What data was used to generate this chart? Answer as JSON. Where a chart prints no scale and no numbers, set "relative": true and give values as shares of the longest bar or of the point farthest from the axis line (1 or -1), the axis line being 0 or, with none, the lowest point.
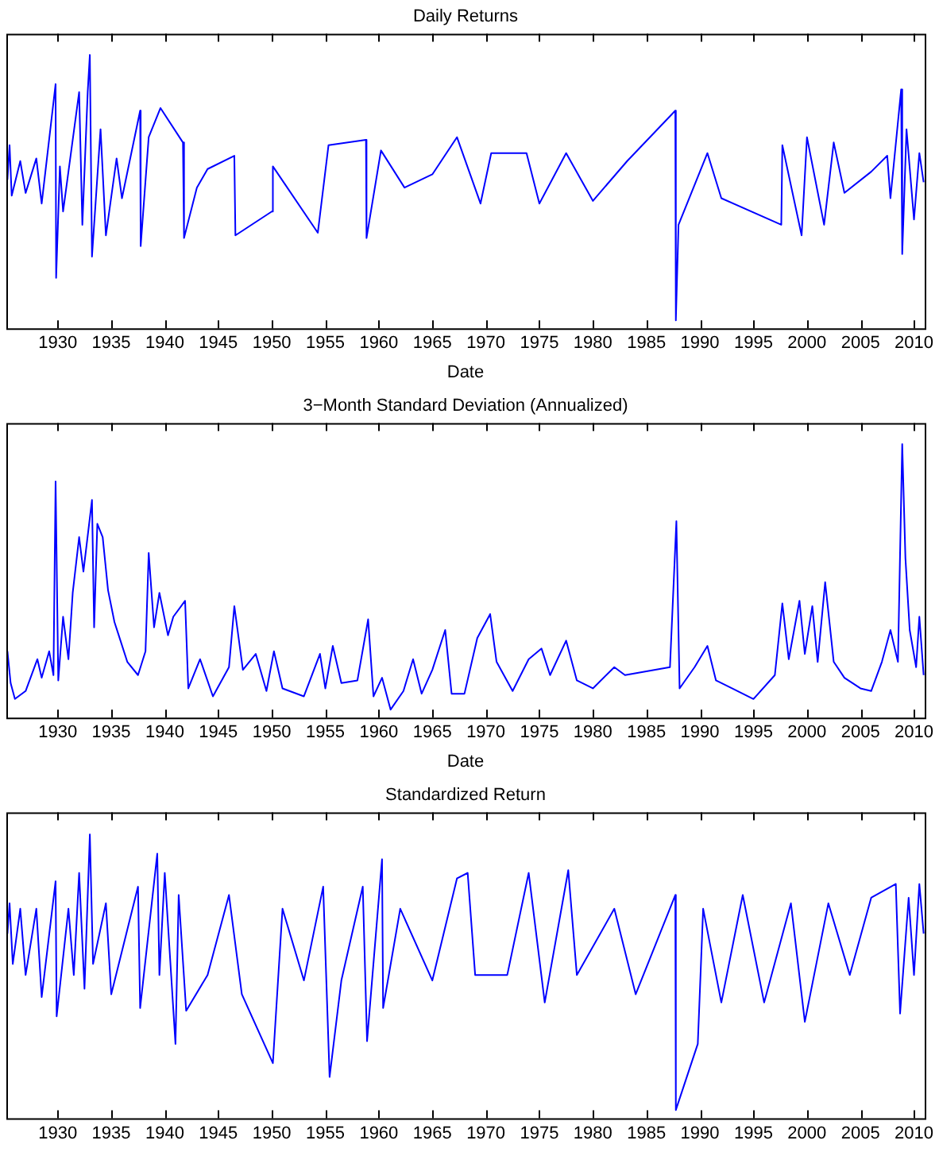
{
  "chart_data": [
    {
      "type": "line",
      "title": "Daily Returns",
      "xlabel": "Date",
      "relative": true,
      "color": "#0000ff",
      "marker": "none",
      "xlim": [
        1925.2,
        2011
      ],
      "xticks": [
        1930,
        1935,
        1940,
        1945,
        1950,
        1955,
        1960,
        1965,
        1970,
        1975,
        1980,
        1985,
        1990,
        1995,
        2000,
        2005,
        2010
      ],
      "x": [
        1925.3,
        1925.5,
        1925.7,
        1926.5,
        1927,
        1928,
        1928.5,
        1929.8,
        1929.85,
        1930.2,
        1930.5,
        1932,
        1932.3,
        1932.8,
        1933,
        1933.2,
        1934,
        1934.5,
        1935.5,
        1936,
        1937.7,
        1937.75,
        1938.5,
        1939.6,
        1941.7,
        1941.8,
        1943,
        1944,
        1946.5,
        1946.6,
        1950,
        1950.1,
        1954.3,
        1955.3,
        1958.8,
        1958.85,
        1960.2,
        1962.4,
        1965,
        1967.3,
        1969.5,
        1970.5,
        1973.8,
        1975,
        1977.5,
        1980,
        1983.2,
        1987.7,
        1987.75,
        1988,
        1990.7,
        1992,
        1997.6,
        1997.7,
        1999.5,
        2000,
        2001.6,
        2002.5,
        2003.5,
        2006,
        2007.5,
        2007.8,
        2008.8,
        2008.9,
        2009.3,
        2010,
        2010.5,
        2010.9
      ],
      "values": [
        0.53,
        0.66,
        0.47,
        0.6,
        0.48,
        0.61,
        0.44,
        0.89,
        0.16,
        0.58,
        0.41,
        0.86,
        0.36,
        0.86,
        1.0,
        0.24,
        0.72,
        0.32,
        0.61,
        0.46,
        0.79,
        0.28,
        0.69,
        0.8,
        0.67,
        0.31,
        0.5,
        0.57,
        0.62,
        0.32,
        0.41,
        0.58,
        0.33,
        0.66,
        0.68,
        0.31,
        0.64,
        0.5,
        0.55,
        0.69,
        0.44,
        0.63,
        0.63,
        0.44,
        0.63,
        0.45,
        0.6,
        0.79,
        0.0,
        0.36,
        0.63,
        0.46,
        0.36,
        0.66,
        0.32,
        0.69,
        0.36,
        0.67,
        0.48,
        0.56,
        0.62,
        0.46,
        0.87,
        0.25,
        0.72,
        0.38,
        0.63,
        0.52
      ]
    },
    {
      "type": "line",
      "title": "3−Month Standard Deviation (Annualized)",
      "xlabel": "Date",
      "relative": true,
      "color": "#0000ff",
      "marker": "none",
      "xlim": [
        1925.2,
        2011
      ],
      "xticks": [
        1930,
        1935,
        1940,
        1945,
        1950,
        1955,
        1960,
        1965,
        1970,
        1975,
        1980,
        1985,
        1990,
        1995,
        2000,
        2005,
        2010
      ],
      "x": [
        1925.3,
        1925.6,
        1926,
        1927,
        1928.1,
        1928.5,
        1929.2,
        1929.6,
        1929.8,
        1930.05,
        1930.5,
        1931,
        1931.4,
        1932,
        1932.4,
        1933.2,
        1933.4,
        1933.7,
        1934.2,
        1934.7,
        1935.3,
        1935.7,
        1936.5,
        1937.5,
        1938.2,
        1938.5,
        1939,
        1939.5,
        1940.3,
        1940.8,
        1941.9,
        1942.2,
        1943.3,
        1944.5,
        1946,
        1946.5,
        1947.3,
        1948.5,
        1949.5,
        1950.2,
        1951,
        1953,
        1954.5,
        1955,
        1955.7,
        1956.5,
        1958,
        1959,
        1959.5,
        1960.3,
        1961.1,
        1962.3,
        1963.2,
        1964,
        1965,
        1966.2,
        1966.8,
        1968,
        1969.2,
        1970.4,
        1971,
        1972.5,
        1974,
        1975.2,
        1976,
        1977.5,
        1978.5,
        1980,
        1982,
        1983,
        1987.2,
        1987.8,
        1988.1,
        1989.5,
        1990.7,
        1991.5,
        1993,
        1995,
        1997,
        1997.7,
        1998.3,
        1999.3,
        1999.8,
        2000.5,
        2001,
        2001.7,
        2002.5,
        2003.5,
        2005,
        2006,
        2007,
        2007.8,
        2008.5,
        2008.9,
        2009.2,
        2009.6,
        2010.2,
        2010.5,
        2010.9
      ],
      "values": [
        0.22,
        0.1,
        0.04,
        0.07,
        0.19,
        0.12,
        0.22,
        0.13,
        0.86,
        0.11,
        0.35,
        0.19,
        0.44,
        0.65,
        0.52,
        0.79,
        0.31,
        0.7,
        0.65,
        0.45,
        0.33,
        0.28,
        0.18,
        0.13,
        0.22,
        0.59,
        0.31,
        0.44,
        0.28,
        0.35,
        0.41,
        0.08,
        0.19,
        0.05,
        0.16,
        0.39,
        0.15,
        0.21,
        0.07,
        0.22,
        0.08,
        0.05,
        0.21,
        0.08,
        0.24,
        0.1,
        0.11,
        0.34,
        0.05,
        0.12,
        0,
        0.07,
        0.19,
        0.06,
        0.15,
        0.3,
        0.06,
        0.06,
        0.27,
        0.36,
        0.18,
        0.07,
        0.19,
        0.23,
        0.13,
        0.26,
        0.11,
        0.08,
        0.16,
        0.13,
        0.16,
        0.71,
        0.08,
        0.16,
        0.24,
        0.11,
        0.08,
        0.04,
        0.13,
        0.4,
        0.19,
        0.41,
        0.21,
        0.39,
        0.18,
        0.48,
        0.18,
        0.12,
        0.08,
        0.07,
        0.18,
        0.3,
        0.18,
        1.0,
        0.57,
        0.3,
        0.16,
        0.35,
        0.13
      ]
    },
    {
      "type": "line",
      "title": "Standardized Return",
      "relative": true,
      "color": "#0000ff",
      "marker": "none",
      "xlim": [
        1925.2,
        2011
      ],
      "xticks": [
        1930,
        1935,
        1940,
        1945,
        1950,
        1955,
        1960,
        1965,
        1970,
        1975,
        1980,
        1985,
        1990,
        1995,
        2000,
        2005,
        2010
      ],
      "x": [
        1925.3,
        1925.5,
        1925.8,
        1926.5,
        1927,
        1928,
        1928.5,
        1929.8,
        1929.9,
        1931,
        1931.5,
        1932,
        1932.5,
        1933,
        1933.3,
        1934.5,
        1935,
        1937.5,
        1937.7,
        1939.3,
        1939.5,
        1940,
        1941,
        1941.3,
        1942,
        1944,
        1946,
        1947.2,
        1950.1,
        1951,
        1953,
        1954.8,
        1955.4,
        1956.5,
        1958.5,
        1958.9,
        1960.3,
        1960.4,
        1962,
        1965,
        1967.3,
        1968.3,
        1969,
        1972,
        1974,
        1975.5,
        1977.7,
        1978.5,
        1982,
        1984,
        1987.7,
        1987.75,
        1989.8,
        1990.3,
        1992,
        1994,
        1996,
        1998.5,
        1999.8,
        2002,
        2004,
        2006,
        2008.3,
        2008.7,
        2009.5,
        2010,
        2010.5,
        2010.9
      ],
      "values": [
        0.64,
        0.75,
        0.53,
        0.73,
        0.49,
        0.73,
        0.41,
        0.83,
        0.34,
        0.73,
        0.49,
        0.86,
        0.44,
        1.0,
        0.53,
        0.75,
        0.42,
        0.81,
        0.37,
        0.93,
        0.49,
        0.86,
        0.24,
        0.78,
        0.36,
        0.49,
        0.78,
        0.42,
        0.17,
        0.73,
        0.47,
        0.81,
        0.12,
        0.47,
        0.81,
        0.25,
        0.91,
        0.37,
        0.73,
        0.47,
        0.84,
        0.86,
        0.49,
        0.49,
        0.86,
        0.39,
        0.87,
        0.49,
        0.73,
        0.42,
        0.78,
        0.0,
        0.24,
        0.73,
        0.39,
        0.78,
        0.39,
        0.75,
        0.32,
        0.75,
        0.49,
        0.77,
        0.82,
        0.35,
        0.77,
        0.49,
        0.82,
        0.64
      ]
    }
  ]
}
